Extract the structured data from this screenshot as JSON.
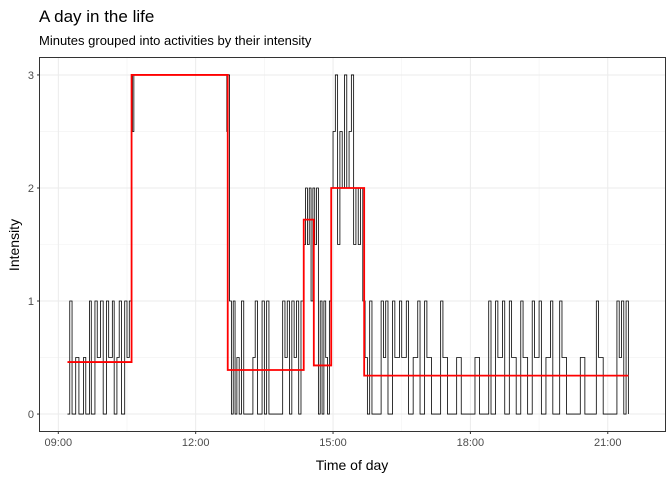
{
  "chart_data": {
    "type": "line",
    "title": "A day in the life",
    "subtitle": "Minutes grouped into activities by their intensity",
    "xlabel": "Time of day",
    "ylabel": "Intensity",
    "x_unit": "hours",
    "xlim": [
      8.6,
      22.25
    ],
    "ylim": [
      -0.15,
      3.15
    ],
    "x_ticks": [
      9,
      12,
      15,
      18,
      21
    ],
    "x_tick_labels": [
      "09:00",
      "12:00",
      "15:00",
      "18:00",
      "21:00"
    ],
    "y_ticks": [
      0,
      1,
      2,
      3
    ],
    "y_tick_labels": [
      "0",
      "1",
      "2",
      "3"
    ],
    "grid": true,
    "series": [
      {
        "color": "#000000",
        "kind": "minute-intensity",
        "points": [
          [
            9.2,
            0
          ],
          [
            9.25,
            1
          ],
          [
            9.3,
            0
          ],
          [
            9.38,
            0.5
          ],
          [
            9.45,
            0
          ],
          [
            9.55,
            0.5
          ],
          [
            9.6,
            0
          ],
          [
            9.68,
            1
          ],
          [
            9.72,
            0
          ],
          [
            9.8,
            1
          ],
          [
            9.85,
            0.5
          ],
          [
            9.92,
            1
          ],
          [
            9.98,
            0
          ],
          [
            10.05,
            1
          ],
          [
            10.1,
            0.5
          ],
          [
            10.18,
            1
          ],
          [
            10.22,
            0
          ],
          [
            10.28,
            0.5
          ],
          [
            10.33,
            1
          ],
          [
            10.38,
            0
          ],
          [
            10.45,
            1
          ],
          [
            10.5,
            0.5
          ],
          [
            10.55,
            1
          ],
          [
            10.6,
            3
          ],
          [
            10.62,
            2.5
          ],
          [
            10.65,
            3
          ],
          [
            12.65,
            3
          ],
          [
            12.68,
            2.5
          ],
          [
            12.7,
            3
          ],
          [
            12.74,
            1
          ],
          [
            12.78,
            0
          ],
          [
            12.82,
            1
          ],
          [
            12.86,
            0
          ],
          [
            12.9,
            0.5
          ],
          [
            12.95,
            0
          ],
          [
            13.0,
            1
          ],
          [
            13.05,
            0
          ],
          [
            13.15,
            0
          ],
          [
            13.25,
            0.5
          ],
          [
            13.3,
            1
          ],
          [
            13.35,
            0
          ],
          [
            13.45,
            1
          ],
          [
            13.5,
            0
          ],
          [
            13.55,
            1
          ],
          [
            13.6,
            0
          ],
          [
            13.7,
            0
          ],
          [
            13.8,
            0
          ],
          [
            13.9,
            1
          ],
          [
            13.95,
            0.5
          ],
          [
            14.0,
            1
          ],
          [
            14.05,
            0
          ],
          [
            14.1,
            1
          ],
          [
            14.15,
            0.5
          ],
          [
            14.2,
            1
          ],
          [
            14.25,
            0
          ],
          [
            14.3,
            1
          ],
          [
            14.36,
            1.5
          ],
          [
            14.4,
            2
          ],
          [
            14.44,
            1.5
          ],
          [
            14.48,
            2
          ],
          [
            14.52,
            1
          ],
          [
            14.56,
            2
          ],
          [
            14.6,
            1.5
          ],
          [
            14.64,
            2
          ],
          [
            14.68,
            0
          ],
          [
            14.72,
            1
          ],
          [
            14.76,
            0
          ],
          [
            14.8,
            1
          ],
          [
            14.84,
            0.5
          ],
          [
            14.88,
            0
          ],
          [
            14.92,
            1
          ],
          [
            14.96,
            2
          ],
          [
            15.0,
            2.5
          ],
          [
            15.05,
            3
          ],
          [
            15.1,
            1.5
          ],
          [
            15.15,
            2.5
          ],
          [
            15.2,
            2
          ],
          [
            15.25,
            3
          ],
          [
            15.3,
            2
          ],
          [
            15.35,
            2.5
          ],
          [
            15.4,
            3
          ],
          [
            15.45,
            1.5
          ],
          [
            15.5,
            2
          ],
          [
            15.55,
            1.5
          ],
          [
            15.6,
            2
          ],
          [
            15.65,
            1
          ],
          [
            15.7,
            0.5
          ],
          [
            15.75,
            0
          ],
          [
            15.8,
            1
          ],
          [
            15.85,
            0
          ],
          [
            15.95,
            0
          ],
          [
            16.05,
            1
          ],
          [
            16.1,
            0.5
          ],
          [
            16.15,
            1
          ],
          [
            16.2,
            0
          ],
          [
            16.3,
            1
          ],
          [
            16.35,
            0.5
          ],
          [
            16.45,
            1
          ],
          [
            16.5,
            0.5
          ],
          [
            16.6,
            1
          ],
          [
            16.65,
            0
          ],
          [
            16.75,
            0.5
          ],
          [
            16.85,
            1
          ],
          [
            16.9,
            0
          ],
          [
            17.0,
            1
          ],
          [
            17.05,
            0.5
          ],
          [
            17.15,
            0
          ],
          [
            17.25,
            0
          ],
          [
            17.35,
            1
          ],
          [
            17.4,
            0.5
          ],
          [
            17.5,
            0
          ],
          [
            17.6,
            0
          ],
          [
            17.7,
            0.5
          ],
          [
            17.8,
            0
          ],
          [
            17.9,
            0
          ],
          [
            18.0,
            0
          ],
          [
            18.1,
            0.5
          ],
          [
            18.2,
            0
          ],
          [
            18.4,
            1
          ],
          [
            18.45,
            0
          ],
          [
            18.55,
            1
          ],
          [
            18.6,
            0.5
          ],
          [
            18.7,
            1
          ],
          [
            18.75,
            0
          ],
          [
            18.85,
            1
          ],
          [
            18.9,
            0.5
          ],
          [
            19.0,
            0
          ],
          [
            19.1,
            1
          ],
          [
            19.15,
            0.5
          ],
          [
            19.25,
            0
          ],
          [
            19.35,
            1
          ],
          [
            19.4,
            0.5
          ],
          [
            19.5,
            1
          ],
          [
            19.55,
            0
          ],
          [
            19.65,
            0.5
          ],
          [
            19.75,
            1
          ],
          [
            19.8,
            0
          ],
          [
            19.95,
            1
          ],
          [
            20.0,
            0.5
          ],
          [
            20.1,
            0
          ],
          [
            20.25,
            0
          ],
          [
            20.4,
            0.5
          ],
          [
            20.5,
            0
          ],
          [
            20.6,
            0
          ],
          [
            20.75,
            1
          ],
          [
            20.8,
            0.5
          ],
          [
            20.9,
            0
          ],
          [
            21.0,
            0
          ],
          [
            21.1,
            0
          ],
          [
            21.2,
            1
          ],
          [
            21.25,
            0.5
          ],
          [
            21.3,
            1
          ],
          [
            21.35,
            0
          ],
          [
            21.4,
            1
          ],
          [
            21.45,
            0
          ]
        ]
      },
      {
        "color": "#ff0000",
        "kind": "activity-average",
        "segments": [
          {
            "start": 9.2,
            "end": 10.6,
            "value": 0.46
          },
          {
            "start": 10.6,
            "end": 12.7,
            "value": 3.0
          },
          {
            "start": 12.7,
            "end": 14.36,
            "value": 0.39
          },
          {
            "start": 14.36,
            "end": 14.58,
            "value": 1.72
          },
          {
            "start": 14.58,
            "end": 14.96,
            "value": 0.43
          },
          {
            "start": 14.96,
            "end": 15.68,
            "value": 2.0
          },
          {
            "start": 15.68,
            "end": 21.45,
            "value": 0.34
          }
        ]
      }
    ]
  }
}
